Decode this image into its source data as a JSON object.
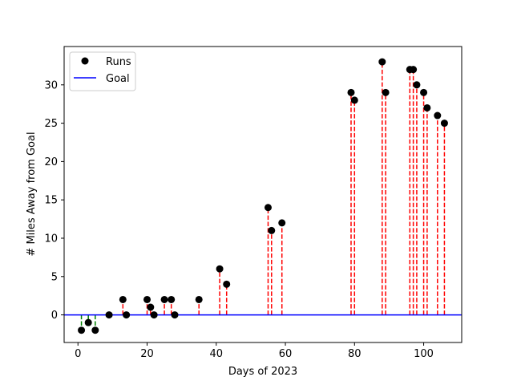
{
  "chart_data": {
    "type": "scatter",
    "title": "",
    "xlabel": "Days of 2023",
    "ylabel": "# Miles Away from Goal",
    "xlim": [
      -4,
      111
    ],
    "ylim": [
      -3.6,
      35
    ],
    "xticks": [
      0,
      20,
      40,
      60,
      80,
      100
    ],
    "yticks": [
      0,
      5,
      10,
      15,
      20,
      25,
      30
    ],
    "grid": false,
    "legend": {
      "position": "top-left",
      "entries": [
        {
          "label": "Runs",
          "marker": "circle",
          "color": "#000000"
        },
        {
          "label": "Goal",
          "marker": "line",
          "color": "#0000ff"
        }
      ]
    },
    "goal": 0,
    "colors": {
      "points": "#000000",
      "goal": "#0000ff",
      "above": "#ff0000",
      "below": "#008000"
    },
    "series": [
      {
        "name": "Runs",
        "x": [
          1,
          3,
          5,
          9,
          13,
          14,
          20,
          21,
          22,
          25,
          27,
          28,
          35,
          41,
          43,
          55,
          56,
          59,
          79,
          80,
          88,
          89,
          96,
          97,
          98,
          100,
          101,
          104,
          106
        ],
        "y": [
          -2,
          -1,
          -2,
          0,
          2,
          0,
          2,
          1,
          0,
          2,
          2,
          0,
          2,
          6,
          4,
          14,
          11,
          12,
          29,
          28,
          33,
          29,
          32,
          32,
          30,
          29,
          27,
          26,
          25
        ]
      }
    ]
  }
}
